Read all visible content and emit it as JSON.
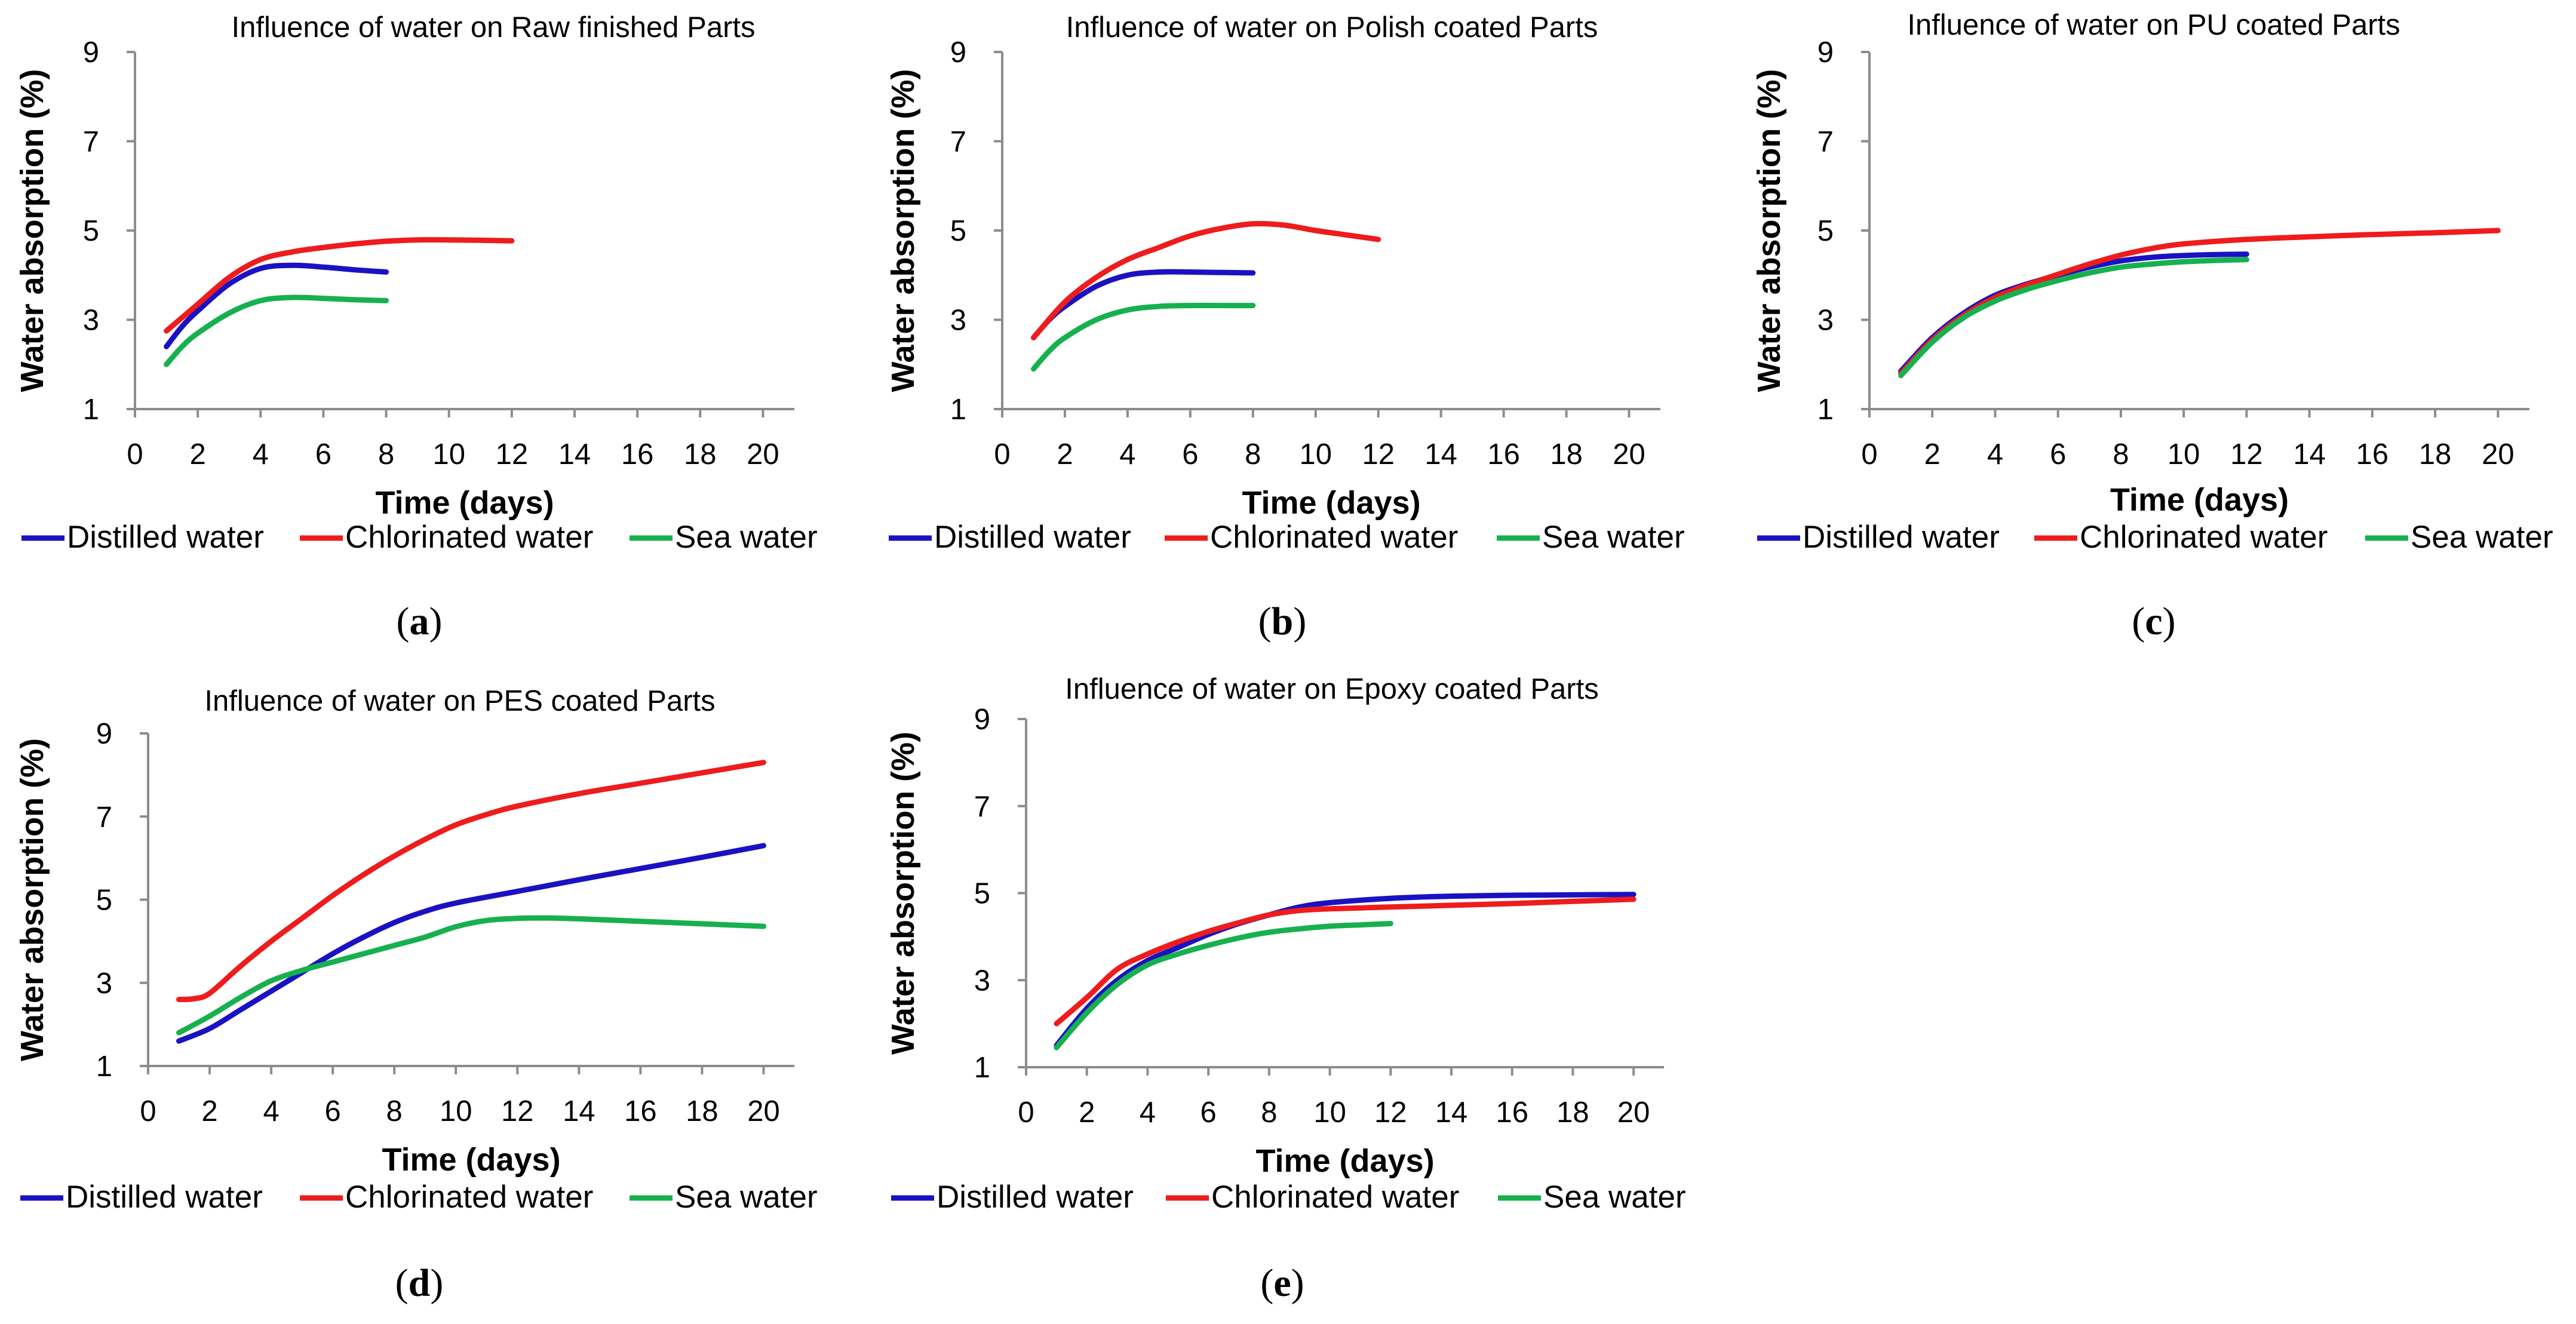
{
  "chart_data": [
    {
      "type": "line",
      "panel_label": "a",
      "title": "Influence of water on Raw finished Parts",
      "xlabel": "Time (days)",
      "ylabel": "Water absorption (%)",
      "xlim": [
        0,
        21
      ],
      "ylim": [
        1,
        9
      ],
      "xticks": [
        0,
        2,
        4,
        6,
        8,
        10,
        12,
        14,
        16,
        18,
        20
      ],
      "yticks": [
        1,
        3,
        5,
        7,
        9
      ],
      "legend_position": "bottom",
      "series": [
        {
          "name": "Distilled water",
          "color": "#1a12c2",
          "x": [
            1,
            1.5,
            2,
            3,
            4,
            5,
            6,
            7,
            8
          ],
          "y": [
            2.4,
            2.85,
            3.2,
            3.8,
            4.15,
            4.22,
            4.18,
            4.12,
            4.07
          ]
        },
        {
          "name": "Chlorinated water",
          "color": "#ee1c1c",
          "x": [
            1,
            2,
            3,
            4,
            5,
            6,
            7,
            8,
            9,
            10,
            12
          ],
          "y": [
            2.75,
            3.35,
            3.95,
            4.35,
            4.52,
            4.62,
            4.7,
            4.76,
            4.79,
            4.79,
            4.77
          ]
        },
        {
          "name": "Sea water",
          "color": "#17b04f",
          "x": [
            1,
            1.5,
            2,
            3,
            4,
            5,
            6,
            7,
            8
          ],
          "y": [
            2.0,
            2.4,
            2.7,
            3.15,
            3.43,
            3.5,
            3.48,
            3.45,
            3.43
          ]
        }
      ]
    },
    {
      "type": "line",
      "panel_label": "b",
      "title": "Influence of water on Polish coated Parts",
      "xlabel": "Time (days)",
      "ylabel": "Water absorption (%)",
      "xlim": [
        0,
        21
      ],
      "ylim": [
        1,
        9
      ],
      "xticks": [
        0,
        2,
        4,
        6,
        8,
        10,
        12,
        14,
        16,
        18,
        20
      ],
      "yticks": [
        1,
        3,
        5,
        7,
        9
      ],
      "legend_position": "bottom",
      "series": [
        {
          "name": "Distilled water",
          "color": "#1a12c2",
          "x": [
            1,
            1.5,
            2,
            3,
            4,
            5,
            6,
            7,
            8
          ],
          "y": [
            2.6,
            3.0,
            3.3,
            3.75,
            4.0,
            4.07,
            4.07,
            4.06,
            4.05
          ]
        },
        {
          "name": "Chlorinated water",
          "color": "#ee1c1c",
          "x": [
            1,
            2,
            3,
            4,
            5,
            6,
            7,
            8,
            9,
            10,
            11,
            12
          ],
          "y": [
            2.6,
            3.4,
            3.95,
            4.35,
            4.62,
            4.88,
            5.05,
            5.15,
            5.12,
            5.0,
            4.9,
            4.8
          ]
        },
        {
          "name": "Sea water",
          "color": "#17b04f",
          "x": [
            1,
            1.5,
            2,
            3,
            4,
            5,
            6,
            7,
            8
          ],
          "y": [
            1.9,
            2.3,
            2.6,
            3.0,
            3.22,
            3.3,
            3.32,
            3.32,
            3.32
          ]
        }
      ]
    },
    {
      "type": "line",
      "panel_label": "c",
      "title": "Influence of water on PU coated Parts",
      "xlabel": "Time (days)",
      "ylabel": "Water absorption (%)",
      "xlim": [
        0,
        21
      ],
      "ylim": [
        1,
        9
      ],
      "xticks": [
        0,
        2,
        4,
        6,
        8,
        10,
        12,
        14,
        16,
        18,
        20
      ],
      "yticks": [
        1,
        3,
        5,
        7,
        9
      ],
      "legend_position": "bottom",
      "series": [
        {
          "name": "Distilled water",
          "color": "#1a12c2",
          "x": [
            1,
            2,
            3,
            4,
            5,
            6,
            7,
            8,
            9,
            10,
            11,
            12
          ],
          "y": [
            1.85,
            2.6,
            3.15,
            3.55,
            3.8,
            4.0,
            4.18,
            4.32,
            4.4,
            4.44,
            4.46,
            4.47
          ]
        },
        {
          "name": "Chlorinated water",
          "color": "#ee1c1c",
          "x": [
            1,
            2,
            3,
            4,
            5,
            6,
            7,
            8,
            9,
            10,
            12,
            14,
            16,
            18,
            20
          ],
          "y": [
            1.8,
            2.55,
            3.1,
            3.5,
            3.78,
            4.02,
            4.25,
            4.45,
            4.6,
            4.7,
            4.8,
            4.86,
            4.91,
            4.95,
            5.0
          ]
        },
        {
          "name": "Sea water",
          "color": "#17b04f",
          "x": [
            1,
            2,
            3,
            4,
            5,
            6,
            7,
            8,
            9,
            10,
            11,
            12
          ],
          "y": [
            1.75,
            2.5,
            3.05,
            3.42,
            3.68,
            3.88,
            4.05,
            4.18,
            4.25,
            4.3,
            4.33,
            4.35
          ]
        }
      ]
    },
    {
      "type": "line",
      "panel_label": "d",
      "title": "Influence of water on PES coated Parts",
      "xlabel": "Time (days)",
      "ylabel": "Water absorption (%)",
      "xlim": [
        0,
        21
      ],
      "ylim": [
        1,
        9
      ],
      "xticks": [
        0,
        2,
        4,
        6,
        8,
        10,
        12,
        14,
        16,
        18,
        20
      ],
      "yticks": [
        1,
        3,
        5,
        7,
        9
      ],
      "legend_position": "bottom",
      "series": [
        {
          "name": "Distilled water",
          "color": "#1a12c2",
          "x": [
            1,
            2,
            3,
            4,
            5,
            6,
            7,
            8,
            9,
            10,
            12,
            14,
            16,
            18,
            20
          ],
          "y": [
            1.6,
            1.9,
            2.35,
            2.8,
            3.25,
            3.7,
            4.1,
            4.45,
            4.72,
            4.92,
            5.2,
            5.48,
            5.75,
            6.02,
            6.3
          ]
        },
        {
          "name": "Chlorinated water",
          "color": "#ee1c1c",
          "x": [
            1,
            1.5,
            2,
            3,
            4,
            5,
            6,
            7,
            8,
            9,
            10,
            11,
            12,
            14,
            16,
            18,
            20
          ],
          "y": [
            2.6,
            2.62,
            2.75,
            3.4,
            4.0,
            4.55,
            5.1,
            5.6,
            6.05,
            6.45,
            6.8,
            7.05,
            7.25,
            7.55,
            7.8,
            8.05,
            8.3
          ]
        },
        {
          "name": "Sea water",
          "color": "#17b04f",
          "x": [
            1,
            2,
            3,
            4,
            5,
            6,
            7,
            8,
            9,
            10,
            11,
            12,
            13,
            14,
            16,
            18,
            20
          ],
          "y": [
            1.8,
            2.2,
            2.65,
            3.05,
            3.3,
            3.5,
            3.7,
            3.9,
            4.1,
            4.35,
            4.5,
            4.55,
            4.56,
            4.54,
            4.48,
            4.42,
            4.36
          ]
        }
      ]
    },
    {
      "type": "line",
      "panel_label": "e",
      "title": "Influence of water on Epoxy coated Parts",
      "xlabel": "Time (days)",
      "ylabel": "Water absorption (%)",
      "xlim": [
        0,
        21
      ],
      "ylim": [
        1,
        9
      ],
      "xticks": [
        0,
        2,
        4,
        6,
        8,
        10,
        12,
        14,
        16,
        18,
        20
      ],
      "yticks": [
        1,
        3,
        5,
        7,
        9
      ],
      "legend_position": "bottom",
      "series": [
        {
          "name": "Distilled water",
          "color": "#1a12c2",
          "x": [
            1,
            2,
            3,
            4,
            5,
            6,
            7,
            8,
            9,
            10,
            12,
            14,
            16,
            18,
            20
          ],
          "y": [
            1.5,
            2.35,
            3.0,
            3.45,
            3.75,
            4.05,
            4.3,
            4.5,
            4.68,
            4.78,
            4.88,
            4.93,
            4.95,
            4.96,
            4.97
          ]
        },
        {
          "name": "Chlorinated water",
          "color": "#ee1c1c",
          "x": [
            1,
            2,
            3,
            4,
            5,
            6,
            7,
            8,
            9,
            10,
            12,
            14,
            16,
            18,
            20
          ],
          "y": [
            2.0,
            2.6,
            3.25,
            3.6,
            3.88,
            4.12,
            4.32,
            4.5,
            4.6,
            4.64,
            4.68,
            4.72,
            4.76,
            4.81,
            4.86
          ]
        },
        {
          "name": "Sea water",
          "color": "#17b04f",
          "x": [
            1,
            2,
            3,
            4,
            5,
            6,
            7,
            8,
            9,
            10,
            11,
            12
          ],
          "y": [
            1.45,
            2.25,
            2.9,
            3.35,
            3.6,
            3.8,
            3.97,
            4.1,
            4.18,
            4.24,
            4.27,
            4.3
          ]
        }
      ]
    }
  ]
}
